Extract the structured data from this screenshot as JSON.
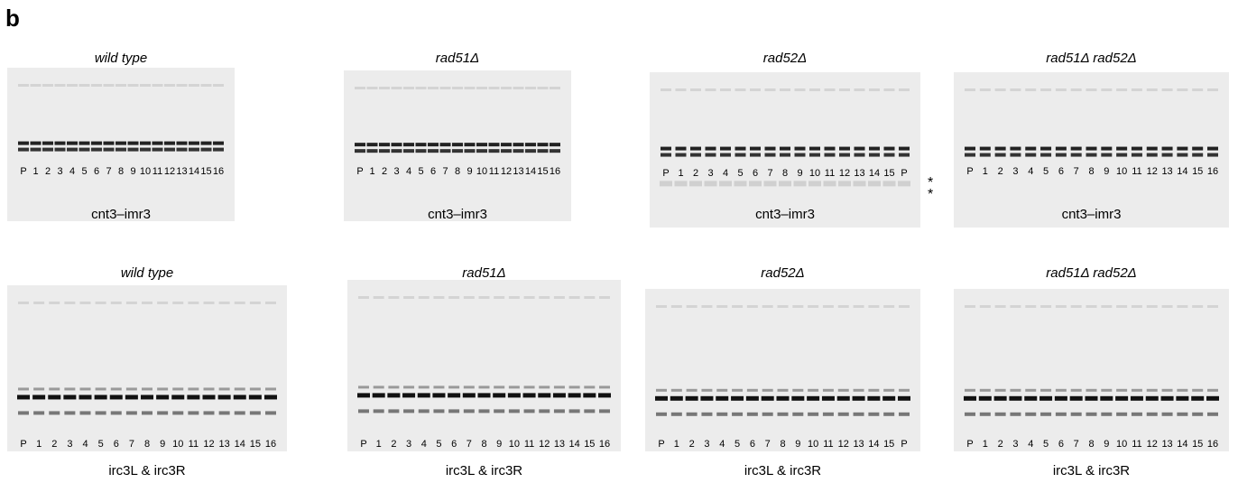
{
  "panel_label": "b",
  "rows": [
    {
      "gels": [
        {
          "title": "wild type",
          "lanes": [
            "P",
            "1",
            "2",
            "3",
            "4",
            "5",
            "6",
            "7",
            "8",
            "9",
            "10",
            "11",
            "12",
            "13",
            "14",
            "15",
            "16"
          ],
          "primer": "cnt3–imr3"
        },
        {
          "title": "rad51Δ",
          "lanes": [
            "P",
            "1",
            "2",
            "3",
            "4",
            "5",
            "6",
            "7",
            "8",
            "9",
            "10",
            "11",
            "12",
            "13",
            "14",
            "15",
            "16"
          ],
          "primer": "cnt3–imr3"
        },
        {
          "title": "rad52Δ",
          "lanes": [
            "P",
            "1",
            "2",
            "3",
            "4",
            "5",
            "6",
            "7",
            "8",
            "9",
            "10",
            "11",
            "12",
            "13",
            "14",
            "15",
            "P"
          ],
          "primer": "cnt3–imr3"
        },
        {
          "title": "rad51Δ rad52Δ",
          "lanes": [
            "P",
            "1",
            "2",
            "3",
            "4",
            "5",
            "6",
            "7",
            "8",
            "9",
            "10",
            "11",
            "12",
            "13",
            "14",
            "15",
            "16"
          ],
          "primer": "cnt3–imr3"
        }
      ]
    },
    {
      "gels": [
        {
          "title": "wild type",
          "lanes": [
            "P",
            "1",
            "2",
            "3",
            "4",
            "5",
            "6",
            "7",
            "8",
            "9",
            "10",
            "11",
            "12",
            "13",
            "14",
            "15",
            "16"
          ],
          "primer": "irc3L & irc3R"
        },
        {
          "title": "rad51Δ",
          "lanes": [
            "P",
            "1",
            "2",
            "3",
            "4",
            "5",
            "6",
            "7",
            "8",
            "9",
            "10",
            "11",
            "12",
            "13",
            "14",
            "15",
            "16"
          ],
          "primer": "irc3L & irc3R"
        },
        {
          "title": "rad52Δ",
          "lanes": [
            "P",
            "1",
            "2",
            "3",
            "4",
            "5",
            "6",
            "7",
            "8",
            "9",
            "10",
            "11",
            "12",
            "13",
            "14",
            "15",
            "P"
          ],
          "primer": "irc3L & irc3R"
        },
        {
          "title": "rad51Δ rad52Δ",
          "lanes": [
            "P",
            "1",
            "2",
            "3",
            "4",
            "5",
            "6",
            "7",
            "8",
            "9",
            "10",
            "11",
            "12",
            "13",
            "14",
            "15",
            "16"
          ],
          "primer": "irc3L & irc3R"
        }
      ]
    }
  ],
  "markers": [
    "*",
    "*"
  ]
}
